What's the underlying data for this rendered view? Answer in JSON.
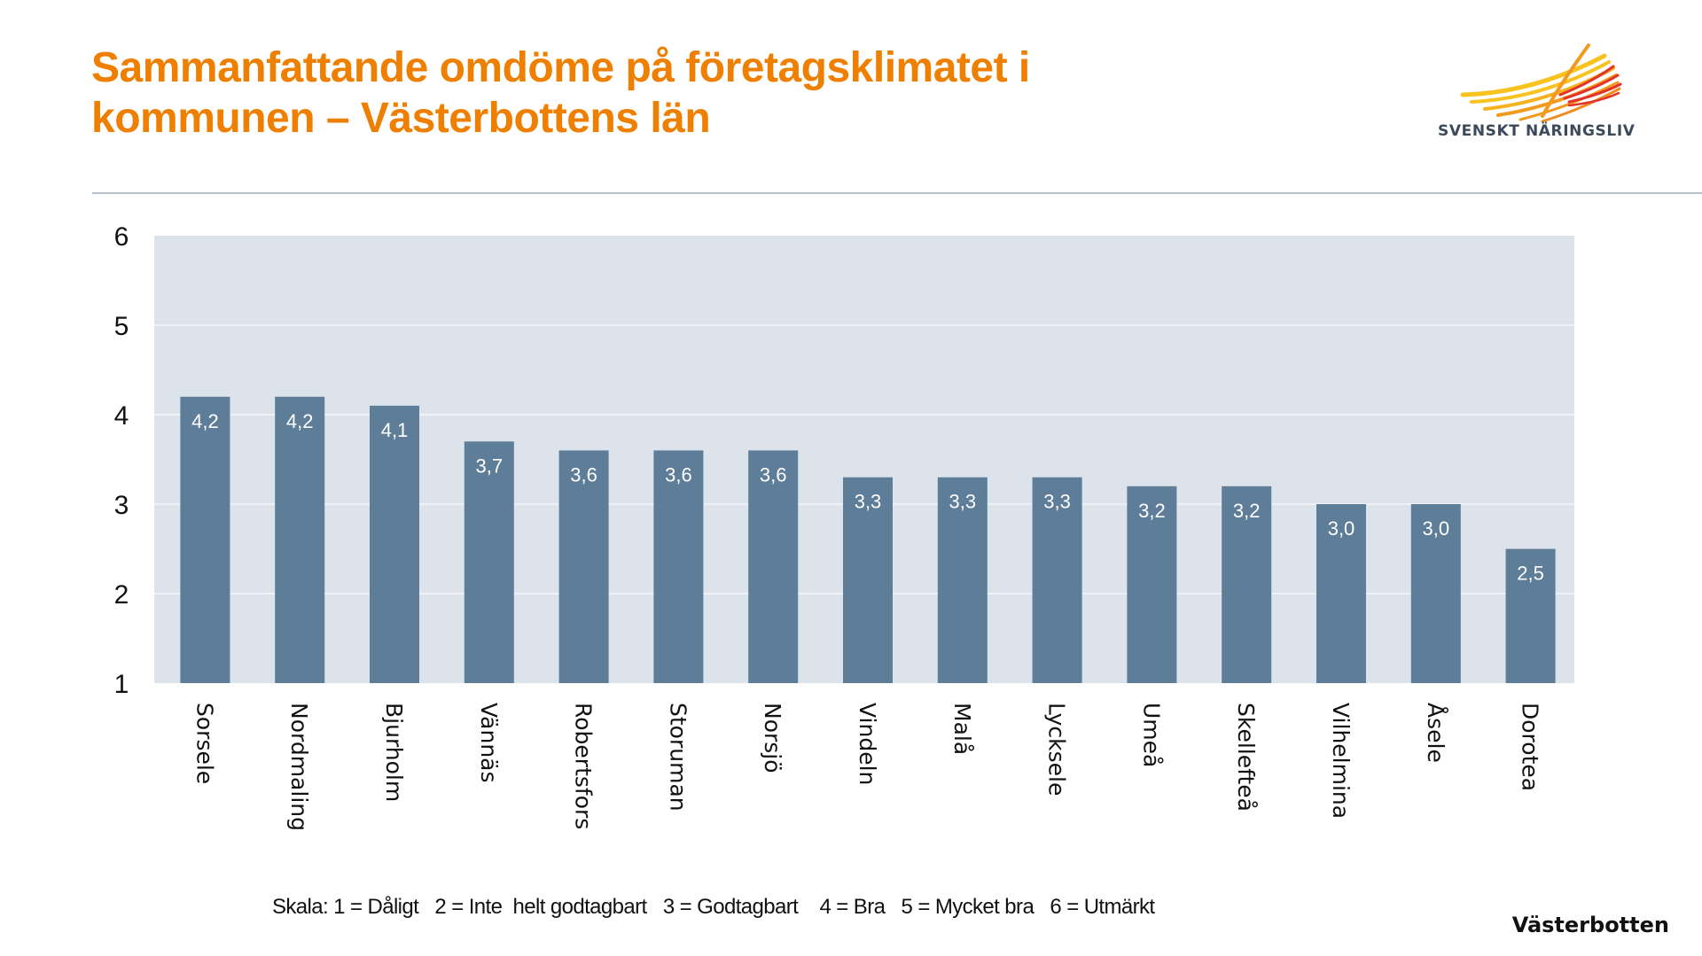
{
  "header": {
    "title_line1": "Sammanfattande omdöme på företagsklimatet i",
    "title_line2": "kommunen – Västerbottens län",
    "logo_text": "SVENSKT NÄRINGSLIV"
  },
  "colors": {
    "title": "#ee7f00",
    "bar": "#5e7d98",
    "plot_bg": "#dde3ea",
    "gridline": "#eef1f5",
    "logo_yellow": "#f9c31f",
    "logo_orange": "#f29a1e",
    "logo_red": "#e2332a"
  },
  "footer": {
    "scale_text": "Skala: 1 = Dåligt   2 = Inte  helt godtagbart   3 = Godtagbart    4 = Bra   5 = Mycket bra   6 = Utmärkt",
    "region_label": "Västerbotten"
  },
  "chart_data": {
    "type": "bar",
    "title": "Sammanfattande omdöme på företagsklimatet i kommunen – Västerbottens län",
    "xlabel": "",
    "ylabel": "",
    "ylim": [
      1,
      6
    ],
    "yticks": [
      1,
      2,
      3,
      4,
      5,
      6
    ],
    "ytick_labels": [
      "1",
      "2",
      "3",
      "4",
      "5",
      "6"
    ],
    "grid": true,
    "legend": "none",
    "categories": [
      "Sorsele",
      "Nordmaling",
      "Bjurholm",
      "Vännäs",
      "Robertsfors",
      "Storuman",
      "Norsjö",
      "Vindeln",
      "Malå",
      "Lycksele",
      "Umeå",
      "Skellefteå",
      "Vilhelmina",
      "Åsele",
      "Dorotea"
    ],
    "values": [
      4.2,
      4.2,
      4.1,
      3.7,
      3.6,
      3.6,
      3.6,
      3.3,
      3.3,
      3.3,
      3.2,
      3.2,
      3.0,
      3.0,
      2.5
    ],
    "value_labels": [
      "4,2",
      "4,2",
      "4,1",
      "3,7",
      "3,6",
      "3,6",
      "3,6",
      "3,3",
      "3,3",
      "3,3",
      "3,2",
      "3,2",
      "3,0",
      "3,0",
      "2,5"
    ]
  }
}
